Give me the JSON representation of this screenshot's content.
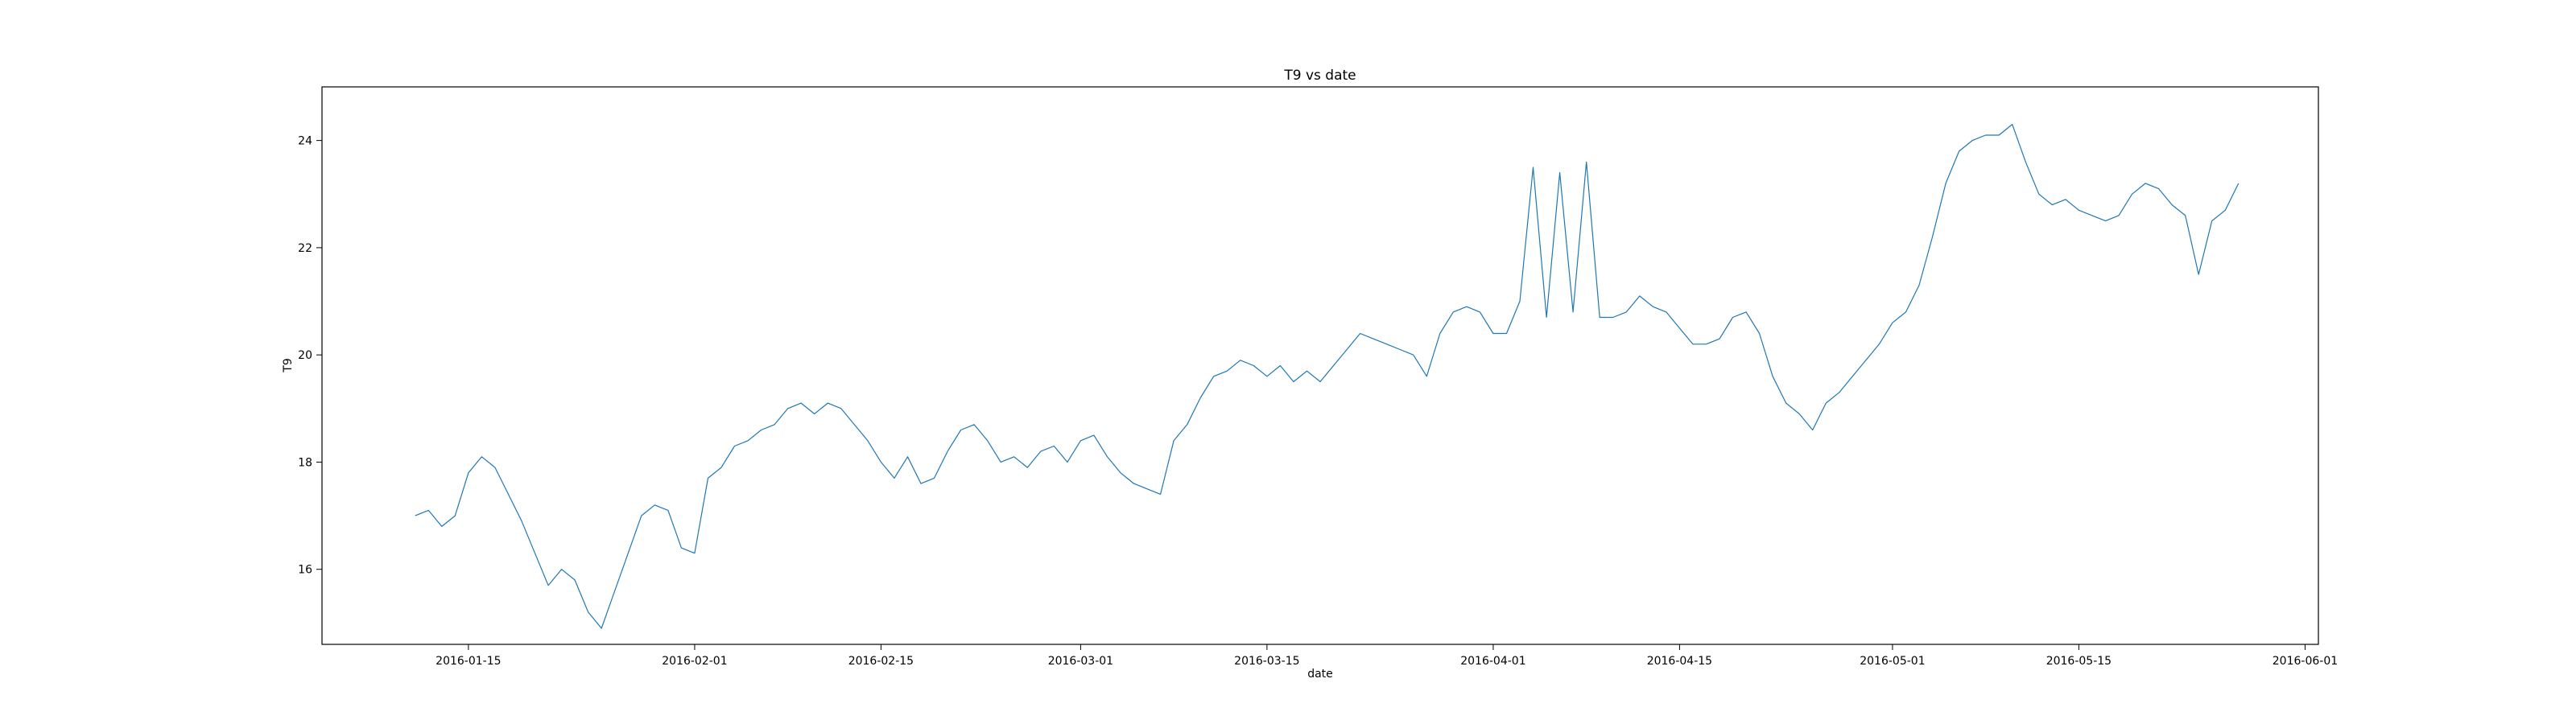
{
  "chart_data": {
    "type": "line",
    "title": "T9 vs date",
    "xlabel": "date",
    "ylabel": "T9",
    "xlim": [
      "2016-01-04",
      "2016-06-02"
    ],
    "ylim": [
      14.6,
      25.0
    ],
    "grid": false,
    "line_color": "#1f77b4",
    "x_ticks": [
      "2016-01-15",
      "2016-02-01",
      "2016-02-15",
      "2016-03-01",
      "2016-03-15",
      "2016-04-01",
      "2016-04-15",
      "2016-05-01",
      "2016-05-15",
      "2016-06-01"
    ],
    "y_ticks": [
      "16",
      "18",
      "20",
      "22",
      "24"
    ],
    "series": [
      {
        "x": [
          "2016-01-11",
          "2016-01-12",
          "2016-01-13",
          "2016-01-14",
          "2016-01-15",
          "2016-01-16",
          "2016-01-17",
          "2016-01-18",
          "2016-01-19",
          "2016-01-20",
          "2016-01-21",
          "2016-01-22",
          "2016-01-23",
          "2016-01-24",
          "2016-01-25",
          "2016-01-26",
          "2016-01-27",
          "2016-01-28",
          "2016-01-29",
          "2016-01-30",
          "2016-01-31",
          "2016-02-01",
          "2016-02-02",
          "2016-02-03",
          "2016-02-04",
          "2016-02-05",
          "2016-02-06",
          "2016-02-07",
          "2016-02-08",
          "2016-02-09",
          "2016-02-10",
          "2016-02-11",
          "2016-02-12",
          "2016-02-13",
          "2016-02-14",
          "2016-02-15",
          "2016-02-16",
          "2016-02-17",
          "2016-02-18",
          "2016-02-19",
          "2016-02-20",
          "2016-02-21",
          "2016-02-22",
          "2016-02-23",
          "2016-02-24",
          "2016-02-25",
          "2016-02-26",
          "2016-02-27",
          "2016-02-28",
          "2016-02-29",
          "2016-03-01",
          "2016-03-02",
          "2016-03-03",
          "2016-03-04",
          "2016-03-05",
          "2016-03-06",
          "2016-03-07",
          "2016-03-08",
          "2016-03-09",
          "2016-03-10",
          "2016-03-11",
          "2016-03-12",
          "2016-03-13",
          "2016-03-14",
          "2016-03-15",
          "2016-03-16",
          "2016-03-17",
          "2016-03-18",
          "2016-03-19",
          "2016-03-20",
          "2016-03-21",
          "2016-03-22",
          "2016-03-23",
          "2016-03-24",
          "2016-03-25",
          "2016-03-26",
          "2016-03-27",
          "2016-03-28",
          "2016-03-29",
          "2016-03-30",
          "2016-03-31",
          "2016-04-01",
          "2016-04-02",
          "2016-04-03",
          "2016-04-04",
          "2016-04-05",
          "2016-04-06",
          "2016-04-07",
          "2016-04-08",
          "2016-04-09",
          "2016-04-10",
          "2016-04-11",
          "2016-04-12",
          "2016-04-13",
          "2016-04-14",
          "2016-04-15",
          "2016-04-16",
          "2016-04-17",
          "2016-04-18",
          "2016-04-19",
          "2016-04-20",
          "2016-04-21",
          "2016-04-22",
          "2016-04-23",
          "2016-04-24",
          "2016-04-25",
          "2016-04-26",
          "2016-04-27",
          "2016-04-28",
          "2016-04-29",
          "2016-04-30",
          "2016-05-01",
          "2016-05-02",
          "2016-05-03",
          "2016-05-04",
          "2016-05-05",
          "2016-05-06",
          "2016-05-07",
          "2016-05-08",
          "2016-05-09",
          "2016-05-10",
          "2016-05-11",
          "2016-05-12",
          "2016-05-13",
          "2016-05-14",
          "2016-05-15",
          "2016-05-16",
          "2016-05-17",
          "2016-05-18",
          "2016-05-19",
          "2016-05-20",
          "2016-05-21",
          "2016-05-22",
          "2016-05-23",
          "2016-05-24",
          "2016-05-25",
          "2016-05-26",
          "2016-05-27"
        ],
        "y": [
          17.0,
          17.1,
          16.8,
          17.0,
          17.8,
          18.1,
          17.9,
          17.4,
          16.9,
          16.3,
          15.7,
          16.0,
          15.8,
          15.2,
          14.9,
          15.6,
          16.3,
          17.0,
          17.2,
          17.1,
          16.4,
          16.3,
          17.7,
          17.9,
          18.3,
          18.4,
          18.6,
          18.7,
          19.0,
          19.1,
          18.9,
          19.1,
          19.0,
          18.7,
          18.4,
          18.0,
          17.7,
          18.1,
          17.6,
          17.7,
          18.2,
          18.6,
          18.7,
          18.4,
          18.0,
          18.1,
          17.9,
          18.2,
          18.3,
          18.0,
          18.4,
          18.5,
          18.1,
          17.8,
          17.6,
          17.5,
          17.4,
          18.4,
          18.7,
          19.2,
          19.6,
          19.7,
          19.9,
          19.8,
          19.6,
          19.8,
          19.5,
          19.7,
          19.5,
          19.8,
          20.1,
          20.4,
          20.3,
          20.2,
          20.1,
          20.0,
          19.6,
          20.4,
          20.8,
          20.9,
          20.8,
          20.4,
          20.4,
          21.0,
          23.5,
          20.7,
          23.4,
          20.8,
          23.6,
          20.7,
          20.7,
          20.8,
          21.1,
          20.9,
          20.8,
          20.5,
          20.2,
          20.2,
          20.3,
          20.7,
          20.8,
          20.4,
          19.6,
          19.1,
          18.9,
          18.6,
          19.1,
          19.3,
          19.6,
          19.9,
          20.2,
          20.6,
          20.8,
          21.3,
          22.2,
          23.2,
          23.8,
          24.0,
          24.1,
          24.1,
          24.3,
          23.6,
          23.0,
          22.8,
          22.9,
          22.7,
          22.6,
          22.5,
          22.6,
          23.0,
          23.2,
          23.1,
          22.8,
          22.6,
          21.5,
          22.5,
          22.7,
          23.2
        ]
      }
    ]
  }
}
